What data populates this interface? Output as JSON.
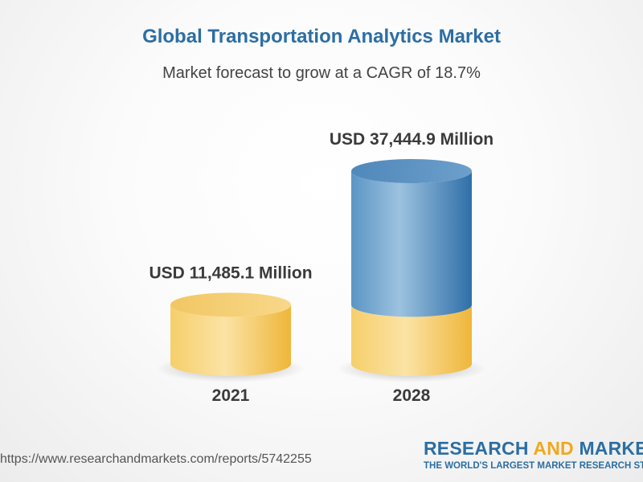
{
  "chart_data": {
    "type": "bar",
    "title": "Global Transportation Analytics Market",
    "subtitle": "Market forecast to grow at a CAGR of 18.7%",
    "categories": [
      "2021",
      "2028"
    ],
    "values": [
      11485.1,
      37444.9
    ],
    "data_labels": [
      "USD 11,485.1 Million",
      "USD 37,444.9 Million"
    ],
    "unit": "USD Million",
    "xlabel": "",
    "ylabel": "",
    "grid": false,
    "legend": "none"
  },
  "colors": {
    "title": "#2c6ea3",
    "base_cylinder": "#f5c95a",
    "growth_cylinder": "#3f80b6",
    "label_text": "#3a3a3a"
  },
  "footer": {
    "source_url": "https://www.researchandmarkets.com/reports/5742255",
    "logo": {
      "text_part1": "RESEARCH ",
      "text_part2": "AND",
      "text_part3": " MARKETS",
      "tagline": "THE WORLD'S LARGEST MARKET RESEARCH STORE"
    }
  }
}
